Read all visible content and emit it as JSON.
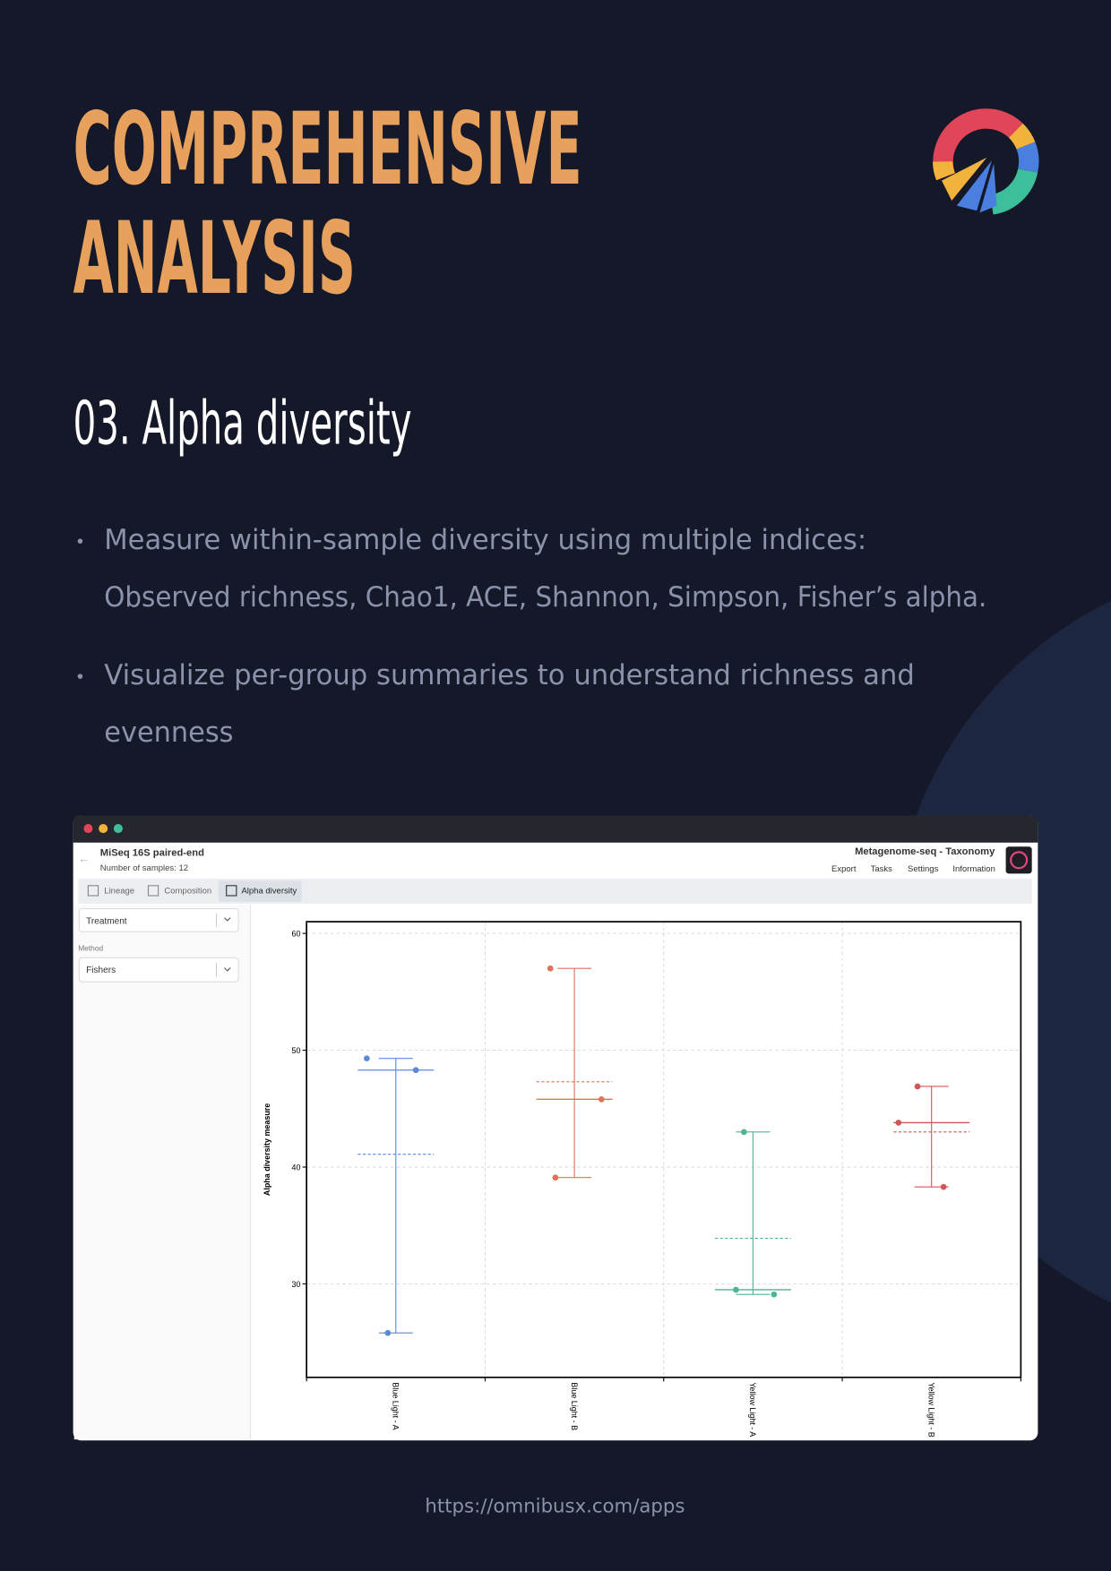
{
  "header": {
    "title_lines": [
      "COMPREHENSIVE",
      "ANALYSIS"
    ],
    "subtitle": "03. Alpha diversity"
  },
  "bullets": [
    [
      "Measure within-sample diversity using multiple indices:",
      "Observed richness, Chao1, ACE, Shannon, Simpson, Fisher’s alpha."
    ],
    [
      "Visualize per-group summaries to understand richness and",
      "evenness"
    ]
  ],
  "app": {
    "project": "MiSeq 16S paired-end",
    "samples": "Number of samples: 12",
    "module": "Metagenome-seq - Taxonomy",
    "menu": [
      "Export",
      "Tasks",
      "Settings",
      "Information"
    ],
    "tabs": [
      "Lineage",
      "Composition",
      "Alpha diversity"
    ],
    "group_select": "Treatment",
    "method_label": "Method",
    "method_select": "Fishers"
  },
  "chart_data": {
    "type": "strip",
    "y_label": "Alpha diversity measure",
    "categories": [
      "Blue Light - A",
      "Blue Light - B",
      "Yellow Light - A",
      "Yellow Light - B"
    ],
    "colors": [
      "#5b8bd6",
      "#e0745a",
      "#4fb58f",
      "#d05656"
    ],
    "points": [
      [
        49.3,
        48.3,
        25.8
      ],
      [
        57.0,
        45.8,
        39.1
      ],
      [
        43.0,
        29.5,
        29.1
      ],
      [
        46.9,
        43.8,
        38.3
      ]
    ],
    "medians": [
      48.3,
      45.8,
      29.5,
      43.8
    ],
    "means": [
      41.1,
      47.3,
      33.9,
      43.0
    ],
    "ylim": [
      22,
      61
    ],
    "yticks": [
      30,
      40,
      50,
      60
    ],
    "grid": true
  },
  "footer": {
    "url": "https://omnibusx.com/apps"
  }
}
